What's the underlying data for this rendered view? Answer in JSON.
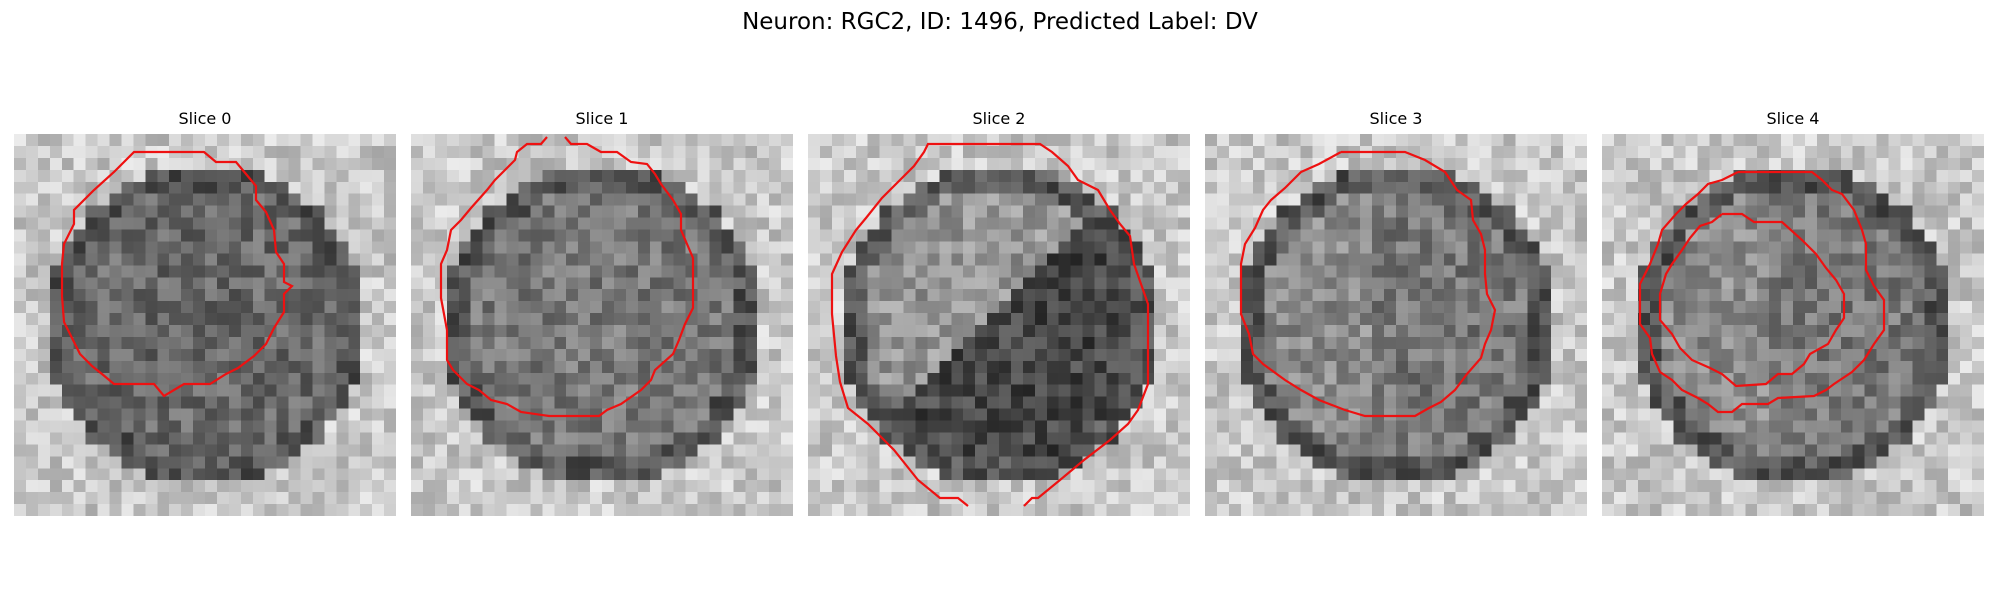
{
  "figure": {
    "title": "Neuron: RGC2, ID: 1496, Predicted Label: DV"
  },
  "contour_color": "#ee1111",
  "panels": [
    {
      "title": "Slice 0",
      "seed": 11,
      "cell": "dark-center",
      "contours": 1
    },
    {
      "title": "Slice 1",
      "seed": 23,
      "cell": "mid-gray",
      "contours": 1
    },
    {
      "title": "Slice 2",
      "seed": 37,
      "cell": "split-light-dark",
      "contours": 1
    },
    {
      "title": "Slice 3",
      "seed": 41,
      "cell": "dark-rim",
      "contours": 1
    },
    {
      "title": "Slice 4",
      "seed": 53,
      "cell": "dark-rim",
      "contours": 2
    }
  ]
}
